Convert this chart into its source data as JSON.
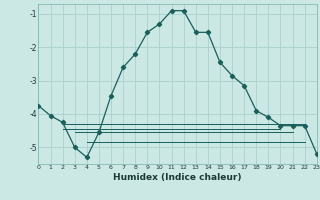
{
  "xlabel": "Humidex (Indice chaleur)",
  "background_color": "#cce8e5",
  "grid_color": "#aacfcc",
  "line_color": "#1a5f5a",
  "xlim": [
    0,
    23
  ],
  "ylim": [
    -5.5,
    -0.7
  ],
  "yticks": [
    -5,
    -4,
    -3,
    -2,
    -1
  ],
  "xticks": [
    0,
    1,
    2,
    3,
    4,
    5,
    6,
    7,
    8,
    9,
    10,
    11,
    12,
    13,
    14,
    15,
    16,
    17,
    18,
    19,
    20,
    21,
    22,
    23
  ],
  "main_x": [
    0,
    1,
    2,
    3,
    4,
    5,
    6,
    7,
    8,
    9,
    10,
    11,
    12,
    13,
    14,
    15,
    16,
    17,
    18,
    19,
    20,
    21,
    22,
    23
  ],
  "main_y": [
    -3.75,
    -4.05,
    -4.25,
    -5.0,
    -5.3,
    -4.55,
    -3.45,
    -2.6,
    -2.2,
    -1.55,
    -1.3,
    -0.9,
    -0.9,
    -1.55,
    -1.55,
    -2.45,
    -2.85,
    -3.15,
    -3.9,
    -4.1,
    -4.35,
    -4.35,
    -4.35,
    -5.2
  ],
  "flat_lines": [
    {
      "x": [
        2,
        22
      ],
      "y": [
        -4.3,
        -4.3
      ]
    },
    {
      "x": [
        2,
        20
      ],
      "y": [
        -4.45,
        -4.45
      ]
    },
    {
      "x": [
        3,
        21
      ],
      "y": [
        -4.55,
        -4.55
      ]
    },
    {
      "x": [
        4,
        22
      ],
      "y": [
        -4.85,
        -4.85
      ]
    }
  ]
}
